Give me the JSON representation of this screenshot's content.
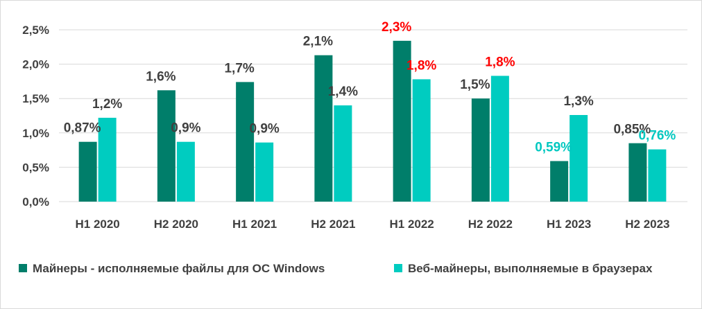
{
  "chart_data": {
    "type": "bar",
    "categories": [
      "H1 2020",
      "H2 2020",
      "H1 2021",
      "H2 2021",
      "H1 2022",
      "H2 2022",
      "H1 2023",
      "H2 2023"
    ],
    "ylim": [
      0,
      2.5
    ],
    "y_ticks": [
      "0,0%",
      "0,5%",
      "1,0%",
      "1,5%",
      "2,0%",
      "2,5%"
    ],
    "y_tick_values": [
      0,
      0.5,
      1.0,
      1.5,
      2.0,
      2.5
    ],
    "grid": true,
    "legend_position": "bottom",
    "series": [
      {
        "name": "Майнеры - исполняемые файлы для ОС Windows",
        "color": "#007E6A",
        "values": [
          0.87,
          1.62,
          1.74,
          2.13,
          2.34,
          1.5,
          0.59,
          0.85
        ],
        "labels": [
          "0,87%",
          "1,6%",
          "1,7%",
          "2,1%",
          "2,3%",
          "1,5%",
          "0,59%",
          "0,85%"
        ],
        "label_colors": [
          "#404040",
          "#404040",
          "#404040",
          "#404040",
          "#FF0000",
          "#404040",
          "#00C8C0",
          "#404040"
        ]
      },
      {
        "name": "Веб-майнеры, выполняемые в браузерах",
        "color": "#00CCC0",
        "values": [
          1.22,
          0.87,
          0.86,
          1.4,
          1.78,
          1.83,
          1.26,
          0.76
        ],
        "labels": [
          "1,2%",
          "0,9%",
          "0,9%",
          "1,4%",
          "1,8%",
          "1,8%",
          "1,3%",
          "0,76%"
        ],
        "label_colors": [
          "#404040",
          "#404040",
          "#404040",
          "#404040",
          "#FF0000",
          "#FF0000",
          "#404040",
          "#00C8C0"
        ]
      }
    ]
  }
}
